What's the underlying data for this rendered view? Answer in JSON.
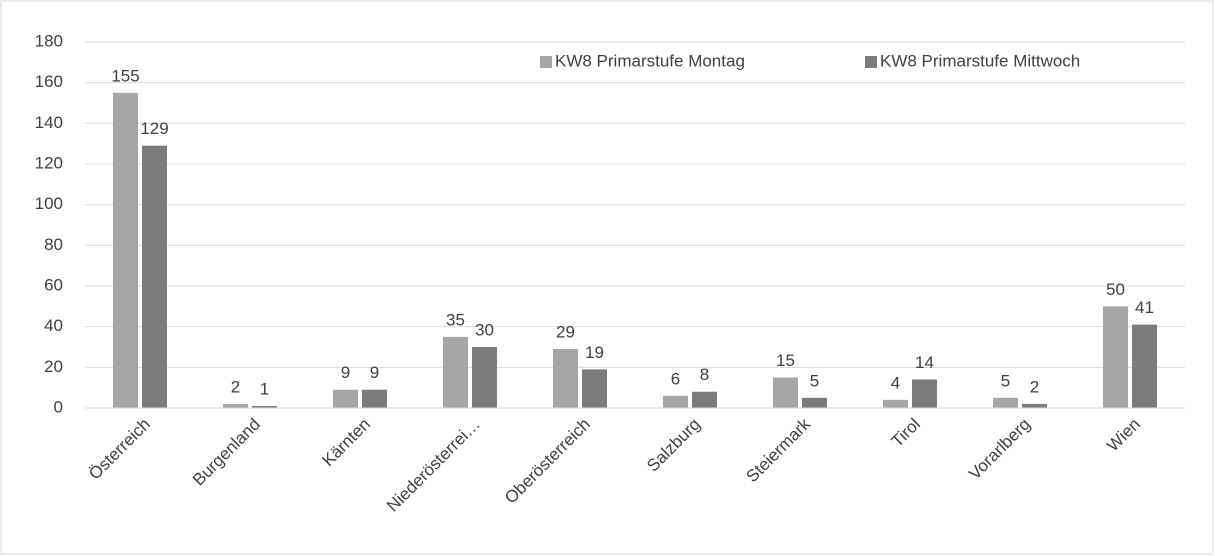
{
  "chart_data": {
    "type": "bar",
    "categories": [
      "Österreich",
      "Burgenland",
      "Kärnten",
      "Niederösterrei…",
      "Oberösterreich",
      "Salzburg",
      "Steiermark",
      "Tirol",
      "Vorarlberg",
      "Wien"
    ],
    "series": [
      {
        "name": "KW8 Primarstufe Montag",
        "color": "#a6a6a6",
        "values": [
          155,
          2,
          9,
          35,
          29,
          6,
          15,
          4,
          5,
          50
        ]
      },
      {
        "name": "KW8 Primarstufe Mittwoch",
        "color": "#7b7b7b",
        "values": [
          129,
          1,
          9,
          30,
          19,
          8,
          5,
          14,
          2,
          41
        ]
      }
    ],
    "ylim": [
      0,
      180
    ],
    "yticks": [
      0,
      20,
      40,
      60,
      80,
      100,
      120,
      140,
      160,
      180
    ],
    "grid": true,
    "legend": "top-right"
  }
}
